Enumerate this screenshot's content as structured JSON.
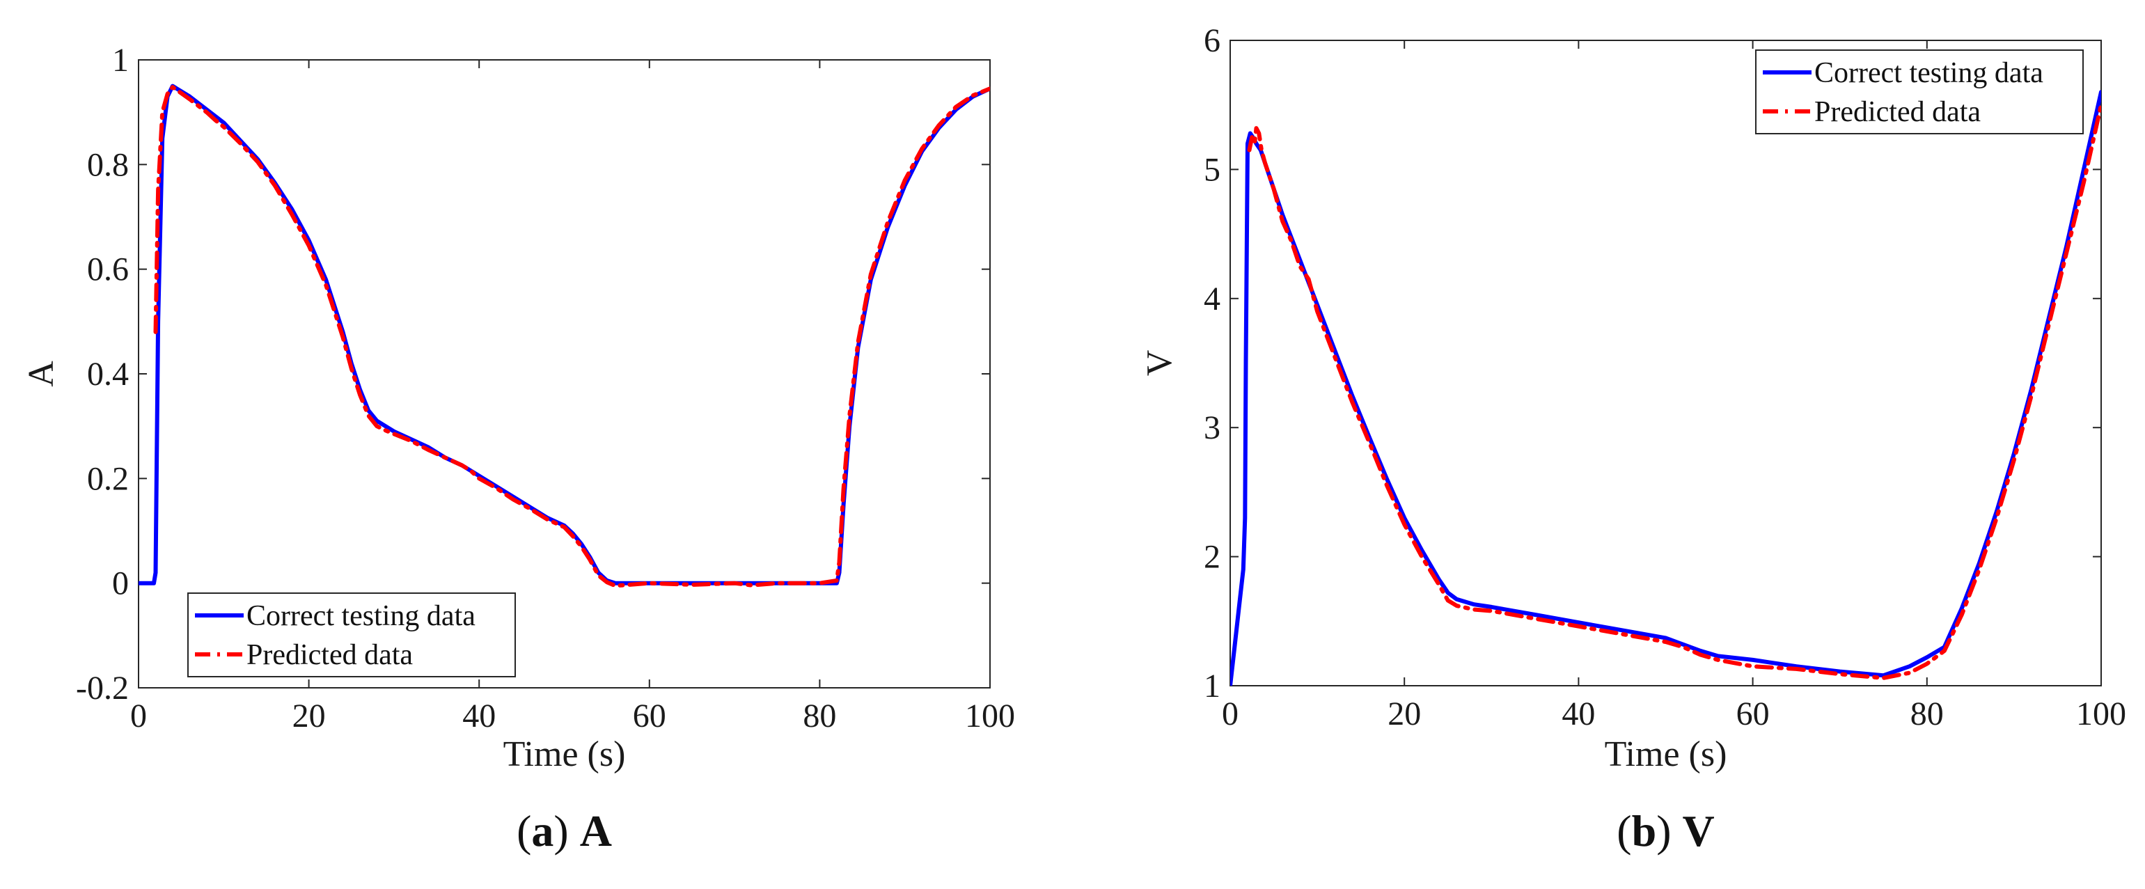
{
  "chart_data": [
    {
      "type": "line",
      "caption_letter": "a",
      "caption_title": "A",
      "xlabel": "Time (s)",
      "ylabel": "A",
      "xlim": [
        0,
        100
      ],
      "ylim": [
        -0.2,
        1
      ],
      "xticks": [
        0,
        20,
        40,
        60,
        80,
        100
      ],
      "xtick_labels": [
        "0",
        "20",
        "40",
        "60",
        "80",
        "100"
      ],
      "yticks": [
        -0.2,
        0,
        0.2,
        0.4,
        0.6,
        0.8,
        1
      ],
      "ytick_labels": [
        "-0.2",
        "0",
        "0.2",
        "0.4",
        "0.6",
        "0.8",
        "1"
      ],
      "grid": false,
      "legend_position": "bottom-left",
      "series": [
        {
          "name": "Correct testing data",
          "color": "#0000ff",
          "style": "solid",
          "x": [
            0,
            1.8,
            2.0,
            2.3,
            2.8,
            3.4,
            4.0,
            6,
            8,
            10,
            12,
            14,
            16,
            18,
            20,
            22,
            24,
            25,
            26,
            27,
            28,
            29,
            30,
            32,
            34,
            36,
            38,
            40,
            42,
            44,
            46,
            48,
            50,
            51,
            52,
            53,
            54,
            55,
            56,
            60,
            65,
            70,
            75,
            80,
            82.0,
            82.3,
            82.8,
            83.5,
            84.5,
            86,
            88,
            90,
            92,
            94,
            96,
            98,
            100
          ],
          "y": [
            0,
            0,
            0.02,
            0.5,
            0.85,
            0.93,
            0.95,
            0.93,
            0.905,
            0.88,
            0.845,
            0.81,
            0.765,
            0.715,
            0.655,
            0.58,
            0.48,
            0.42,
            0.37,
            0.33,
            0.31,
            0.3,
            0.29,
            0.275,
            0.26,
            0.24,
            0.225,
            0.205,
            0.185,
            0.165,
            0.145,
            0.125,
            0.11,
            0.095,
            0.075,
            0.05,
            0.02,
            0.005,
            0,
            0,
            0,
            0,
            0,
            0,
            0,
            0.02,
            0.15,
            0.3,
            0.45,
            0.58,
            0.68,
            0.76,
            0.825,
            0.87,
            0.905,
            0.93,
            0.945
          ]
        },
        {
          "name": "Predicted data",
          "color": "#ff0000",
          "style": "dashdot",
          "x": [
            2.0,
            2.3,
            2.8,
            3.4,
            4.0,
            6,
            8,
            9,
            10,
            12,
            14,
            16,
            18,
            20,
            22,
            24,
            25,
            26,
            27,
            28,
            29,
            30,
            32,
            34,
            36,
            38,
            39,
            40,
            42,
            44,
            46,
            48,
            50,
            51,
            52,
            53,
            54,
            55,
            56,
            60,
            65,
            70,
            72,
            75,
            80,
            82.0,
            82.3,
            82.8,
            83.5,
            84.5,
            86,
            88,
            90,
            92,
            94,
            96,
            98,
            100
          ],
          "y": [
            0.48,
            0.75,
            0.9,
            0.935,
            0.948,
            0.925,
            0.9,
            0.885,
            0.872,
            0.84,
            0.805,
            0.76,
            0.705,
            0.645,
            0.57,
            0.47,
            0.41,
            0.36,
            0.32,
            0.3,
            0.292,
            0.285,
            0.272,
            0.255,
            0.24,
            0.225,
            0.215,
            0.2,
            0.182,
            0.16,
            0.142,
            0.122,
            0.107,
            0.09,
            0.07,
            0.045,
            0.015,
            0.002,
            -0.005,
            0.0,
            -0.003,
            0.0,
            -0.004,
            0.0,
            0.0,
            0.005,
            0.04,
            0.18,
            0.32,
            0.46,
            0.59,
            0.69,
            0.77,
            0.83,
            0.875,
            0.91,
            0.932,
            0.945
          ]
        }
      ]
    },
    {
      "type": "line",
      "caption_letter": "b",
      "caption_title": "V",
      "xlabel": "Time (s)",
      "ylabel": "V",
      "xlim": [
        0,
        100
      ],
      "ylim": [
        1,
        6
      ],
      "xticks": [
        0,
        20,
        40,
        60,
        80,
        100
      ],
      "xtick_labels": [
        "0",
        "20",
        "40",
        "60",
        "80",
        "100"
      ],
      "yticks": [
        1,
        2,
        3,
        4,
        5,
        6
      ],
      "ytick_labels": [
        "1",
        "2",
        "3",
        "4",
        "5",
        "6"
      ],
      "grid": false,
      "legend_position": "top-right",
      "series": [
        {
          "name": "Correct testing data",
          "color": "#0000ff",
          "style": "solid",
          "x": [
            0,
            0.5,
            1.0,
            1.5,
            1.7,
            1.8,
            2.0,
            2.3,
            2.6,
            3.0,
            3.5,
            4,
            6,
            8,
            10,
            12,
            14,
            16,
            18,
            20,
            22,
            24,
            25,
            26,
            28,
            30,
            35,
            40,
            45,
            50,
            52,
            54,
            56,
            60,
            65,
            70,
            75,
            78,
            80,
            82,
            84,
            86,
            88,
            90,
            92,
            94,
            96,
            98,
            100
          ],
          "y": [
            1.0,
            1.3,
            1.6,
            1.9,
            2.3,
            3.5,
            5.2,
            5.28,
            5.25,
            5.2,
            5.15,
            5.05,
            4.65,
            4.3,
            3.95,
            3.6,
            3.25,
            2.92,
            2.6,
            2.3,
            2.05,
            1.82,
            1.72,
            1.67,
            1.63,
            1.61,
            1.55,
            1.49,
            1.43,
            1.37,
            1.32,
            1.27,
            1.23,
            1.2,
            1.15,
            1.11,
            1.08,
            1.15,
            1.22,
            1.3,
            1.6,
            1.95,
            2.35,
            2.8,
            3.3,
            3.85,
            4.4,
            5.0,
            5.6
          ]
        },
        {
          "name": "Predicted data",
          "color": "#ff0000",
          "style": "dashdot",
          "x": [
            2.2,
            2.5,
            2.8,
            3.0,
            3.3,
            3.6,
            4.0,
            5,
            6,
            7,
            8,
            9,
            10,
            12,
            14,
            16,
            18,
            20,
            22,
            24,
            25,
            26,
            28,
            30,
            35,
            40,
            45,
            50,
            52,
            54,
            56,
            60,
            65,
            70,
            75,
            78,
            80,
            82,
            84,
            86,
            88,
            90,
            92,
            94,
            96,
            98,
            100
          ],
          "y": [
            5.15,
            5.25,
            5.2,
            5.32,
            5.28,
            5.15,
            5.05,
            4.85,
            4.6,
            4.45,
            4.25,
            4.15,
            3.9,
            3.55,
            3.2,
            2.88,
            2.55,
            2.25,
            2.0,
            1.78,
            1.66,
            1.62,
            1.59,
            1.58,
            1.52,
            1.46,
            1.4,
            1.34,
            1.3,
            1.24,
            1.2,
            1.15,
            1.13,
            1.09,
            1.06,
            1.1,
            1.17,
            1.27,
            1.55,
            1.9,
            2.3,
            2.75,
            3.25,
            3.8,
            4.35,
            4.9,
            5.5
          ]
        }
      ]
    }
  ]
}
